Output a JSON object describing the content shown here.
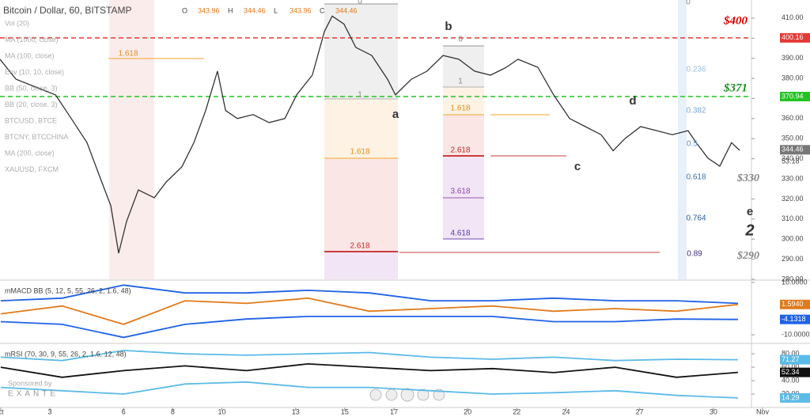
{
  "chart_data": [
    {
      "type": "line",
      "title": "Bitcoin / Dollar, 60, BITSTAMP",
      "ohlc": [
        "O",
        "343.96",
        "H",
        "344.46",
        "L",
        "343.96",
        "C",
        "344.46"
      ],
      "indicators": [
        "Vol (20)",
        "MA (1000, close)",
        "MA (100, close)",
        "Env (10, 10, close)",
        "BB (50, close, 3)",
        "BB (20, close, 3)",
        "BTCUSD, BTCE",
        "BTCNY, BTCCHINA",
        "MA (200, close)",
        "XAUUSD, FXCM"
      ],
      "x": [
        0.97,
        1.62,
        2.42,
        3.23,
        3.87,
        4.51,
        5.0,
        5.48,
        5.8,
        6.12,
        6.6,
        7.25,
        7.73,
        8.37,
        8.86,
        9.34,
        9.82,
        10.15,
        10.63,
        11.27,
        11.92,
        12.56,
        13.04,
        13.68,
        14.17,
        14.49,
        14.97,
        15.45,
        16.1,
        16.74,
        17.06,
        17.71,
        18.35,
        19.0,
        19.64,
        20.28,
        20.93,
        21.57,
        22.05,
        22.86,
        23.5,
        24.15,
        24.79,
        25.43,
        25.92,
        26.4,
        27.04,
        27.69,
        28.33,
        28.97,
        29.3,
        29.78,
        30.26,
        30.74,
        31.07
      ],
      "series": [
        {
          "color": "#333333",
          "values": [
            389.5,
            379.6,
            375.7,
            371.8,
            360,
            348,
            332,
            316.6,
            293,
            308.8,
            324.5,
            320.6,
            328.4,
            336,
            348,
            364,
            383.6,
            364,
            360,
            362,
            358,
            360,
            371.8,
            381.6,
            403.3,
            411,
            407,
            395.4,
            391.4,
            379.6,
            371.8,
            379.6,
            383.6,
            391.4,
            389.5,
            383.6,
            381.6,
            385.5,
            389.5,
            385.5,
            371.8,
            360,
            356,
            352,
            344,
            350,
            356,
            354,
            352,
            354,
            348,
            340.3,
            336.3,
            348,
            344.2
          ]
        }
      ],
      "xlim": [
        0.97,
        31.55
      ],
      "ylim": [
        280,
        419
      ],
      "yticks": [
        {
          "value": 280,
          "label": "280.00"
        },
        {
          "value": 290,
          "label": "290.00"
        },
        {
          "value": 300,
          "label": "300.00"
        },
        {
          "value": 310,
          "label": "310.00"
        },
        {
          "value": 320,
          "label": "320.00"
        },
        {
          "value": 330,
          "label": "330.00"
        },
        {
          "value": 340,
          "label": "340.00"
        },
        {
          "value": 350,
          "label": "350.00"
        },
        {
          "value": 360,
          "label": "360.00"
        },
        {
          "value": 370,
          "label": "370.00"
        },
        {
          "value": 380,
          "label": "380.00"
        },
        {
          "value": 390,
          "label": "390.00"
        },
        {
          "value": 400,
          "label": "400.00"
        },
        {
          "value": 410,
          "label": "410.00"
        }
      ],
      "xticks": [
        {
          "value": 1,
          "label": "ct"
        },
        3,
        6,
        8,
        10,
        13,
        15,
        17,
        20,
        22,
        24,
        27,
        30,
        {
          "value": 32,
          "label": "Nov"
        }
      ],
      "hlines": [
        {
          "value": 400.16,
          "color": "#e53935"
        },
        {
          "value": 370.94,
          "color": "#22c322"
        }
      ],
      "tags": [
        {
          "value": 400.16,
          "color": "#e53935"
        },
        {
          "value": 370.94,
          "color": "#22c322"
        },
        {
          "value": 344.46,
          "color": "#777777"
        }
      ],
      "side_text": "53.18",
      "annotations": [
        "$400",
        "$371",
        "$330",
        "$290",
        "a",
        "b",
        "c",
        "d",
        "e",
        "2"
      ],
      "fib_labels": [
        "0",
        "1",
        "1.618",
        "2.618",
        "1.618",
        "0",
        "1",
        "1.618",
        "2.618",
        "3.618",
        "4.618",
        "0",
        "0.236",
        "0.382",
        "0.5",
        "0.618",
        "0.764",
        "0.89"
      ],
      "footer": [
        "Sponsored by",
        "EXANTE"
      ]
    },
    {
      "type": "line",
      "title": "mMACD BB (5, 12, 5, 55, 26, 2, 1.6, 48)",
      "x": [
        1,
        3.5,
        6,
        8.5,
        11,
        13.5,
        16,
        18.5,
        21,
        23.5,
        26,
        28.5,
        31
      ],
      "series": [
        {
          "color": "#1e62e6",
          "values": [
            3,
            4,
            9,
            6,
            6,
            7,
            6,
            3,
            3,
            4,
            3,
            3,
            2
          ]
        },
        {
          "color": "#1e62e6",
          "values": [
            -5,
            -6,
            -11,
            -6,
            -4,
            -3,
            -3,
            -3,
            -3,
            -5,
            -5,
            -4,
            -4.1318
          ]
        },
        {
          "color": "#e07b1c",
          "values": [
            -2,
            1,
            -6,
            3,
            2,
            4,
            -1,
            0,
            1,
            -1,
            0,
            -1,
            1.594
          ]
        }
      ],
      "xlim": [
        0.97,
        31.55
      ],
      "ylim": [
        -12.1,
        10
      ],
      "yticks": [
        {
          "value": 10,
          "label": "10.0000"
        },
        {
          "value": -10,
          "label": "-10.0000"
        }
      ],
      "tags": [
        {
          "value": 1.594,
          "label": "1.5940",
          "color": "#e07b1c"
        },
        {
          "value": -4.1318,
          "label": "-4.1318",
          "color": "#1e62e6"
        }
      ]
    },
    {
      "type": "line",
      "title": "mRSI (70, 30, 9, 55, 26, 2, 1.6, 12, 48)",
      "x": [
        1,
        3.5,
        6,
        8.5,
        11,
        13.5,
        16,
        18.5,
        21,
        23.5,
        26,
        28.5,
        31
      ],
      "series": [
        {
          "color": "#5bbbe8",
          "values": [
            75,
            70,
            85,
            80,
            78,
            80,
            82,
            75,
            72,
            75,
            70,
            72,
            71.27
          ]
        },
        {
          "color": "#5bbbe8",
          "values": [
            30,
            25,
            20,
            35,
            38,
            30,
            30,
            25,
            20,
            22,
            25,
            18,
            14.29
          ]
        },
        {
          "color": "#111111",
          "values": [
            60,
            45,
            55,
            62,
            55,
            65,
            60,
            55,
            58,
            52,
            60,
            45,
            52.34
          ]
        }
      ],
      "xlim": [
        0.97,
        31.55
      ],
      "ylim": [
        0,
        92
      ],
      "yticks": [
        {
          "value": 80,
          "label": "80.00"
        },
        {
          "value": 60,
          "label": "60.00"
        },
        {
          "value": 40,
          "label": "40.00"
        },
        {
          "value": 20,
          "label": "20.00"
        }
      ],
      "tags": [
        {
          "value": 71.27,
          "label": "71.27",
          "color": "#5bbbe8"
        },
        {
          "value": 52.34,
          "label": "52.34",
          "color": "#111111"
        },
        {
          "value": 14.29,
          "label": "14.29",
          "color": "#5bbbe8"
        }
      ]
    }
  ]
}
